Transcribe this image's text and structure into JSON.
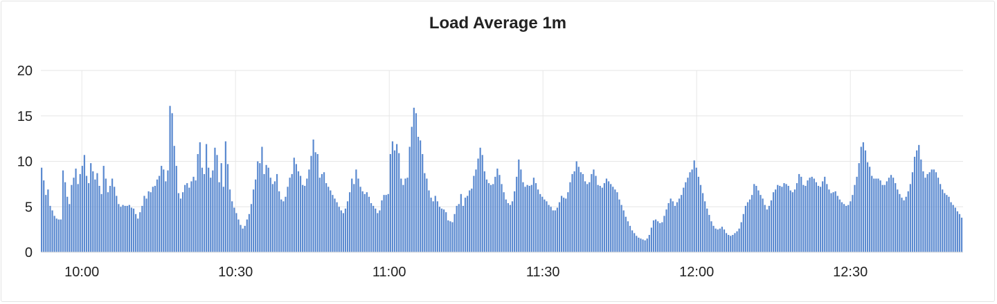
{
  "panel": {
    "title": "Load Average 1m"
  },
  "colors": {
    "bar": "#5b8ad0",
    "grid": "#e6e6e6"
  },
  "chart_data": {
    "type": "bar",
    "title": "Load Average 1m",
    "xlabel": "",
    "ylabel": "",
    "ylim": [
      0,
      20
    ],
    "grid": true,
    "x_ticks": [
      "10:00",
      "10:30",
      "11:00",
      "11:30",
      "12:00",
      "12:30"
    ],
    "y_ticks": [
      "0",
      "5",
      "10",
      "15",
      "20"
    ],
    "x_start": "09:52",
    "x_end": "12:52",
    "sample_minutes": 0.333,
    "values": [
      9.3,
      7.9,
      6.3,
      6.9,
      5.1,
      4.6,
      4,
      3.7,
      3.6,
      3.6,
      9,
      7.7,
      6.1,
      5.3,
      7.4,
      8.2,
      9.2,
      7.5,
      8.6,
      9.5,
      10.7,
      8.4,
      7.6,
      9.8,
      8.9,
      8,
      8.7,
      7.3,
      6.4,
      9.5,
      8.1,
      6.6,
      7.3,
      8.1,
      7.2,
      6.2,
      5.3,
      5,
      5.2,
      5.1,
      5.1,
      5.2,
      4.9,
      4.8,
      4.2,
      3.7,
      4.4,
      5.1,
      6.2,
      5.9,
      6.7,
      6.6,
      7.2,
      7.3,
      8,
      8.4,
      9.5,
      9.1,
      7.8,
      9,
      16.1,
      15.3,
      11.7,
      9.5,
      6.5,
      5.9,
      6.6,
      7.4,
      7.6,
      7.1,
      7.8,
      8.3,
      7.9,
      10.8,
      12.1,
      9.3,
      8.6,
      11.9,
      9.3,
      8.2,
      9,
      11.5,
      10.7,
      7.7,
      9.8,
      7.2,
      12.2,
      9.7,
      6.9,
      5.6,
      4.9,
      4.3,
      3.6,
      3,
      2.6,
      2.9,
      3.6,
      4.2,
      5.3,
      6.9,
      8,
      10,
      9.8,
      11.6,
      8.6,
      9.6,
      9.3,
      8.2,
      7.5,
      7.8,
      8.6,
      6.7,
      5.8,
      5.6,
      6.1,
      7.2,
      8.2,
      8.6,
      10.4,
      9.7,
      8.9,
      8.4,
      7.4,
      7.3,
      8.1,
      9.1,
      10.6,
      12.4,
      11,
      10.8,
      8.2,
      8.6,
      8.8,
      7.6,
      7.2,
      6.8,
      6.3,
      5.9,
      5.5,
      5,
      4.6,
      4.3,
      4.8,
      5.6,
      6.6,
      8.1,
      7.5,
      9.1,
      8.1,
      7.2,
      6.7,
      6.4,
      6.6,
      6.1,
      5.4,
      5.1,
      4.8,
      4.3,
      4.6,
      5.7,
      6.3,
      6.3,
      6.4,
      10.8,
      12.2,
      11.2,
      11.9,
      10.9,
      8.1,
      7.4,
      8.1,
      8.2,
      11.6,
      13.8,
      15.9,
      15.3,
      12.7,
      12.3,
      10.8,
      8.7,
      8.1,
      6.8,
      6,
      5.6,
      6.2,
      5.6,
      5,
      4.8,
      4.7,
      4.4,
      3.5,
      3.4,
      3.3,
      4.2,
      5.1,
      5.3,
      6.4,
      5.1,
      6,
      6.2,
      6.8,
      7,
      8.4,
      9.1,
      10.3,
      11.5,
      10.7,
      8.9,
      8,
      7.6,
      7.4,
      7.5,
      8.3,
      9.2,
      8.5,
      7.5,
      6.6,
      5.8,
      5.4,
      5.2,
      5.6,
      6.7,
      8.3,
      10.2,
      9.1,
      7.7,
      7.2,
      7.4,
      7.3,
      7.4,
      8.2,
      7.6,
      6.9,
      6.4,
      6.1,
      5.8,
      5.6,
      5.2,
      5,
      4.6,
      4.6,
      4.9,
      5.5,
      6.2,
      6,
      5.9,
      6.6,
      7.7,
      8.6,
      8.9,
      10,
      9.4,
      8.8,
      8.6,
      7.8,
      7.5,
      7.7,
      8.6,
      9.1,
      8.4,
      7.4,
      7.3,
      7.1,
      7.6,
      8.1,
      7.8,
      7.5,
      7.2,
      6.9,
      6.6,
      5.8,
      5.2,
      4.6,
      3.9,
      3.4,
      2.9,
      2.4,
      2.1,
      1.8,
      1.6,
      1.5,
      1.4,
      1.3,
      1.5,
      1.9,
      2.7,
      3.5,
      3.6,
      3.4,
      3.2,
      3.3,
      4,
      4.7,
      5.4,
      5.9,
      5.6,
      5.1,
      5.5,
      5.9,
      6.3,
      7.1,
      7.7,
      8.2,
      8.8,
      9.1,
      10.1,
      9.3,
      8.3,
      7.4,
      6.5,
      5.6,
      4.8,
      4.1,
      3.4,
      2.9,
      2.6,
      2.5,
      2.6,
      2.8,
      2.5,
      2.1,
      1.9,
      1.8,
      1.9,
      2.1,
      2.3,
      2.6,
      3.3,
      4.2,
      5.1,
      5.5,
      5.8,
      6.3,
      7.5,
      7.3,
      6.8,
      6.3,
      5.9,
      5.2,
      4.7,
      5.1,
      5.7,
      6.6,
      6.9,
      7.4,
      7.3,
      7.2,
      7.6,
      7.5,
      7.3,
      6.8,
      6.6,
      6.9,
      7.6,
      8.6,
      8.3,
      7.4,
      7.3,
      7.9,
      8.2,
      8.3,
      8.1,
      7.7,
      7.3,
      7.2,
      7.8,
      8.3,
      7.5,
      6.9,
      6.5,
      6.6,
      6.7,
      6.2,
      5.8,
      5.5,
      5.3,
      5.1,
      5.2,
      5.6,
      6.3,
      7.4,
      8.3,
      9.8,
      11.6,
      12.1,
      11.2,
      9.9,
      9.4,
      8.4,
      8.1,
      8.1,
      8.1,
      7.9,
      7.4,
      7.4,
      7.8,
      8.2,
      8.5,
      8.2,
      7.6,
      6.9,
      6.4,
      6,
      5.7,
      6.1,
      6.7,
      7.5,
      8.8,
      10.5,
      11.2,
      11.8,
      10.2,
      8.9,
      8.2,
      8.6,
      8.8,
      9.1,
      9.1,
      8.8,
      8.2,
      7.5,
      6.9,
      6.5,
      6.3,
      6.1,
      5.5,
      5.2,
      4.9,
      4.5,
      4.2,
      3.8
    ]
  }
}
